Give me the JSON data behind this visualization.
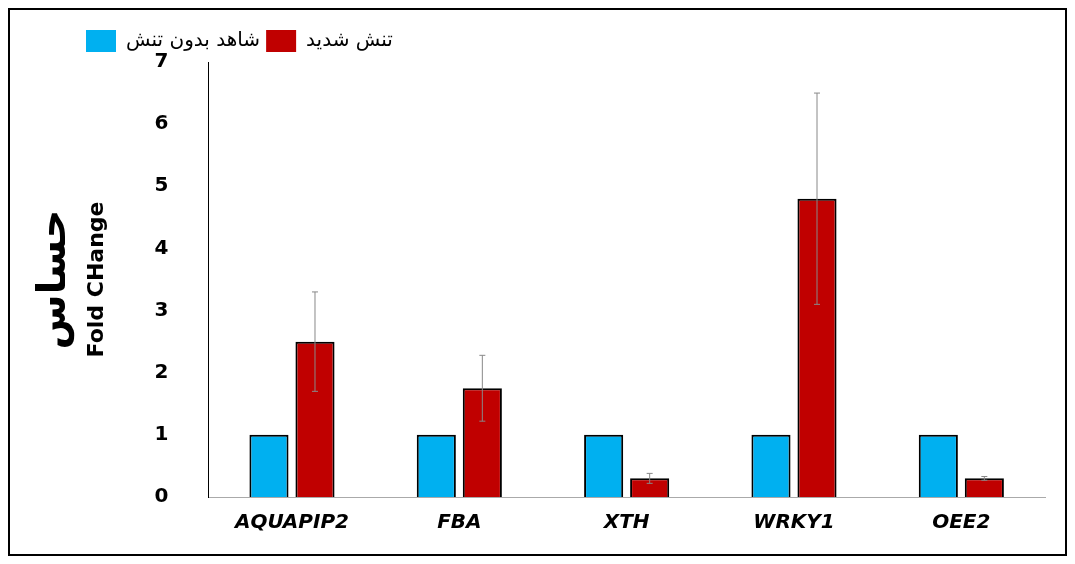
{
  "chart_data": {
    "type": "bar",
    "ylabel": "Fold CHange",
    "annotations": [
      "حساس"
    ],
    "categories": [
      "AQUAPIP2",
      "FBA",
      "XTH",
      "WRKY1",
      "OEE2"
    ],
    "series": [
      {
        "name": "شاهد بدون تنش",
        "color": "#00b0f0",
        "values": [
          1,
          1,
          1,
          1,
          1
        ]
      },
      {
        "name": "تنش شدید",
        "color": "#c00000",
        "values": [
          2.5,
          1.75,
          0.3,
          4.8,
          0.3
        ],
        "errors": [
          0.8,
          0.53,
          0.08,
          1.7,
          0.03
        ]
      }
    ],
    "ylim": [
      0,
      7
    ],
    "yticks": [
      0,
      1,
      2,
      3,
      4,
      5,
      6,
      7
    ],
    "grid": false,
    "legend": "top left"
  }
}
